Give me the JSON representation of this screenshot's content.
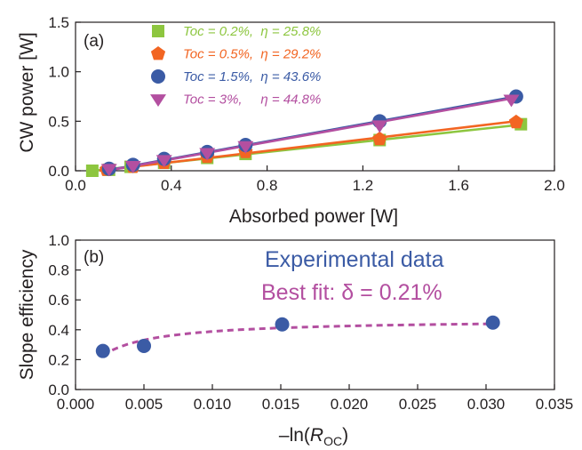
{
  "chart_data": [
    {
      "type": "scatter",
      "panel_label": "(a)",
      "xlabel": "Absorbed  power [W]",
      "ylabel": "CW power [W]",
      "xlim": [
        0.0,
        2.0
      ],
      "ylim": [
        0.0,
        1.5
      ],
      "xticks": [
        "0.0",
        "0.4",
        "0.8",
        "1.2",
        "1.6",
        "2.0"
      ],
      "yticks": [
        "0.0",
        "0.5",
        "1.0",
        "1.5"
      ],
      "grid": false,
      "legend_position": "top-left",
      "series": [
        {
          "name": "Toc = 0.2%,  η = 25.8%",
          "color": "#8dc63f",
          "marker": "square",
          "x": [
            0.07,
            0.14,
            0.23,
            0.37,
            0.55,
            0.71,
            1.27,
            1.86
          ],
          "y": [
            0.0,
            0.01,
            0.04,
            0.08,
            0.13,
            0.17,
            0.31,
            0.47
          ],
          "fit": {
            "x": [
              0.07,
              1.86
            ],
            "y": [
              0.0,
              0.465
            ]
          }
        },
        {
          "name": "Toc = 0.5%,  η = 29.2%",
          "color": "#f26522",
          "marker": "pentagon",
          "x": [
            0.13,
            0.24,
            0.37,
            0.55,
            0.71,
            1.27,
            1.84
          ],
          "y": [
            0.01,
            0.04,
            0.08,
            0.14,
            0.19,
            0.32,
            0.49
          ],
          "fit": {
            "x": [
              0.1,
              1.84
            ],
            "y": [
              0.0,
              0.5
            ]
          }
        },
        {
          "name": "Toc = 1.5%,  η = 43.6%",
          "color": "#3b5ba5",
          "marker": "circle",
          "x": [
            0.14,
            0.24,
            0.37,
            0.55,
            0.71,
            1.27,
            1.84
          ],
          "y": [
            0.02,
            0.06,
            0.12,
            0.19,
            0.26,
            0.5,
            0.75
          ],
          "fit": {
            "x": [
              0.12,
              1.84
            ],
            "y": [
              0.0,
              0.75
            ]
          }
        },
        {
          "name": "Toc = 3%,     η = 44.8%",
          "color": "#b34fa0",
          "marker": "triangle-down",
          "x": [
            0.14,
            0.24,
            0.37,
            0.55,
            0.71,
            1.27,
            1.82
          ],
          "y": [
            0.02,
            0.05,
            0.11,
            0.18,
            0.25,
            0.46,
            0.72
          ],
          "fit": {
            "x": [
              0.13,
              1.82
            ],
            "y": [
              0.0,
              0.73
            ]
          }
        }
      ]
    },
    {
      "type": "scatter",
      "panel_label": "(b)",
      "xlabel_prefix": "–ln(",
      "xlabel_italic": "R",
      "xlabel_sub": "OC",
      "xlabel_suffix": ")",
      "ylabel": "Slope efficiency",
      "xlim": [
        0.0,
        0.035
      ],
      "ylim": [
        0.0,
        1.0
      ],
      "xticks": [
        "0.000",
        "0.005",
        "0.010",
        "0.015",
        "0.020",
        "0.025",
        "0.030",
        "0.035"
      ],
      "yticks": [
        "0.0",
        "0.2",
        "0.4",
        "0.6",
        "0.8",
        "1.0"
      ],
      "grid": false,
      "legend_position": "top-right",
      "series": [
        {
          "name": "Experimental data",
          "color": "#3b5ba5",
          "marker": "circle",
          "x": [
            0.002,
            0.005,
            0.0151,
            0.0305
          ],
          "y": [
            0.258,
            0.292,
            0.436,
            0.448
          ]
        },
        {
          "name": "Best fit: δ = 0.21%",
          "color": "#b34fa0",
          "style": "dashed",
          "delta": 0.0021,
          "x_range": [
            0.002,
            0.0305
          ]
        }
      ]
    }
  ]
}
